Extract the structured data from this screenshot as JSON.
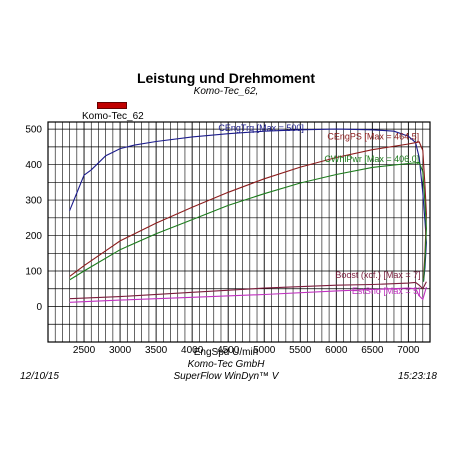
{
  "header": {
    "title": "Leistung und Drehmoment",
    "subtitle": "Komo-Tec_62,",
    "legend_label": "Komo-Tec_62"
  },
  "footer": {
    "xlabel": "EngSpd U/min",
    "company": "Komo-Tec GmbH",
    "software": "SuperFlow WinDyn™ V",
    "date": "12/10/15",
    "time": "15:23:18"
  },
  "chart_data": {
    "type": "line",
    "xlim": [
      2000,
      7300
    ],
    "ylim": [
      -100,
      520
    ],
    "x_ticks": [
      2500,
      3000,
      3500,
      4000,
      4500,
      5000,
      5500,
      6000,
      6500,
      7000
    ],
    "y_ticks": [
      0,
      100,
      200,
      300,
      400,
      500
    ],
    "grid": true,
    "legend_color": "#c00000",
    "series": [
      {
        "name": "CEngTrq [Max = 500]",
        "color": "#1c1c8c",
        "x": [
          2300,
          2400,
          2500,
          2600,
          2700,
          2800,
          2900,
          3000,
          3200,
          3500,
          4000,
          4500,
          5000,
          5500,
          6000,
          6500,
          6800,
          7000,
          7100,
          7150,
          7200,
          7230,
          7250,
          7230,
          7210
        ],
        "y": [
          270,
          320,
          370,
          385,
          405,
          425,
          435,
          445,
          455,
          465,
          478,
          487,
          494,
          498,
          500,
          498,
          494,
          480,
          462,
          420,
          320,
          240,
          180,
          110,
          70
        ]
      },
      {
        "name": "CEngPS [Max = 464.5]",
        "color": "#8c1c1c",
        "x": [
          2300,
          2500,
          3000,
          3500,
          4000,
          4500,
          5000,
          5500,
          6000,
          6500,
          7000,
          7150,
          7200,
          7230,
          7250,
          7230,
          7210
        ],
        "y": [
          85,
          115,
          185,
          235,
          280,
          322,
          360,
          393,
          420,
          442,
          458,
          464,
          440,
          340,
          260,
          150,
          80
        ]
      },
      {
        "name": "CWhlPwr [Max = 406.0]",
        "color": "#1c7c1c",
        "x": [
          2300,
          2500,
          3000,
          3500,
          4000,
          4500,
          5000,
          5500,
          6000,
          6500,
          7000,
          7150,
          7200,
          7230,
          7250,
          7230,
          7210
        ],
        "y": [
          75,
          100,
          160,
          205,
          245,
          285,
          318,
          348,
          372,
          392,
          403,
          406,
          380,
          290,
          220,
          130,
          70
        ]
      },
      {
        "name": "Boost (xcf.) [Max = 7]",
        "color": "#7c1c3c",
        "x": [
          2300,
          3000,
          4000,
          5000,
          6000,
          6500,
          7000,
          7100,
          7150,
          7200,
          7250
        ],
        "y": [
          22,
          28,
          40,
          52,
          60,
          62,
          66,
          68,
          60,
          50,
          70
        ]
      },
      {
        "name": "EstSho [Max = 5]",
        "color": "#c030c0",
        "x": [
          2300,
          3000,
          4000,
          5000,
          6000,
          6500,
          7000,
          7100,
          7150,
          7200,
          7250
        ],
        "y": [
          12,
          18,
          26,
          34,
          44,
          48,
          52,
          50,
          30,
          20,
          55
        ]
      }
    ]
  }
}
